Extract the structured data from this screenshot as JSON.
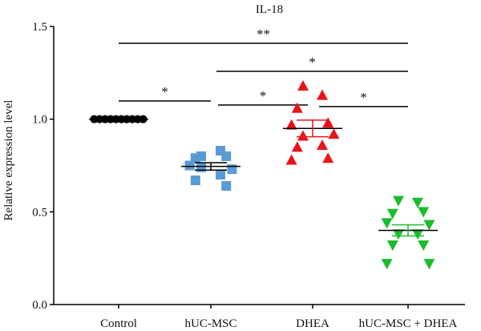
{
  "chart_data": {
    "type": "scatter",
    "title": "IL-18",
    "xlabel": "",
    "ylabel": "Relative expression level",
    "ylim": [
      0.0,
      1.5
    ],
    "yticks": [
      "0.0",
      "0.5",
      "1.0",
      "1.5"
    ],
    "categories": [
      "Control",
      "hUC-MSC",
      "DHEA",
      "hUC-MSC + DHEA"
    ],
    "grid": false,
    "series": [
      {
        "category": "Control",
        "marker": "circle",
        "color": "#000000",
        "values": [
          1.0,
          1.0,
          1.0,
          1.0,
          1.0,
          1.0,
          1.0,
          1.0,
          1.0,
          1.0
        ],
        "mean": 1.0,
        "sem": 0.0
      },
      {
        "category": "hUC-MSC",
        "marker": "square",
        "color": "#5b9bd5",
        "values": [
          0.8,
          0.83,
          0.79,
          0.8,
          0.75,
          0.73,
          0.74,
          0.7,
          0.67,
          0.64
        ],
        "mean": 0.745,
        "sem": 0.02
      },
      {
        "category": "DHEA",
        "marker": "triangle-up",
        "color": "#e8141a",
        "values": [
          1.18,
          1.13,
          1.06,
          0.98,
          0.97,
          0.92,
          0.91,
          0.86,
          0.85,
          0.79,
          0.78
        ],
        "mean": 0.95,
        "sem": 0.045
      },
      {
        "category": "hUC-MSC + DHEA",
        "marker": "triangle-down",
        "color": "#1bbd2c",
        "values": [
          0.56,
          0.55,
          0.49,
          0.5,
          0.44,
          0.43,
          0.38,
          0.38,
          0.32,
          0.32,
          0.22,
          0.22
        ],
        "mean": 0.4,
        "sem": 0.03
      }
    ],
    "significance": [
      {
        "from": "Control",
        "to": "hUC-MSC",
        "label": "*"
      },
      {
        "from": "Control",
        "to": "hUC-MSC + DHEA",
        "label": "**"
      },
      {
        "from": "hUC-MSC",
        "to": "hUC-MSC + DHEA",
        "label": "*"
      },
      {
        "from": "hUC-MSC",
        "to": "DHEA",
        "label": "*"
      },
      {
        "from": "DHEA",
        "to": "hUC-MSC + DHEA",
        "label": "*"
      }
    ]
  }
}
